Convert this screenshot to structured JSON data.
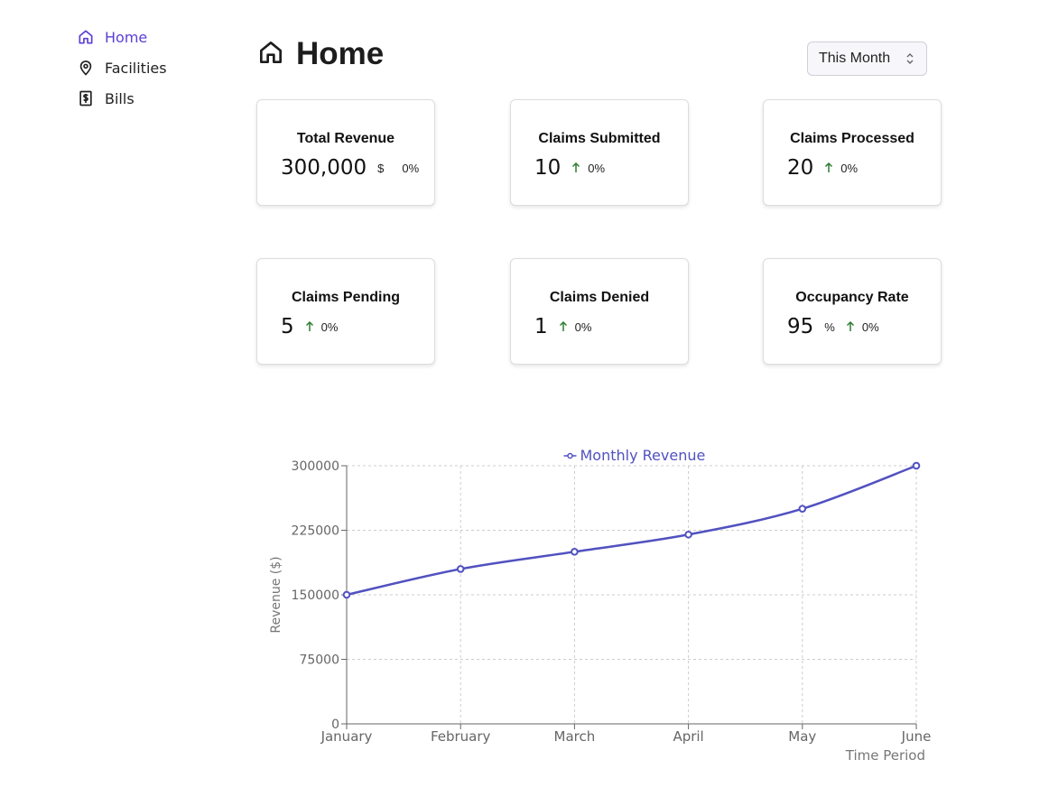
{
  "sidebar": {
    "items": [
      {
        "label": "Home",
        "icon": "home-icon",
        "active": true
      },
      {
        "label": "Facilities",
        "icon": "map-pin-icon",
        "active": false
      },
      {
        "label": "Bills",
        "icon": "dollar-bill-icon",
        "active": false
      }
    ]
  },
  "header": {
    "title": "Home",
    "icon": "home-icon"
  },
  "period_select": {
    "value": "This Month"
  },
  "cards": [
    {
      "title": "Total Revenue",
      "value": "300,000",
      "unit": "$",
      "change": "0%",
      "arrow": false
    },
    {
      "title": "Claims Submitted",
      "value": "10",
      "unit": "",
      "change": "0%",
      "arrow": true
    },
    {
      "title": "Claims Processed",
      "value": "20",
      "unit": "",
      "change": "0%",
      "arrow": true
    },
    {
      "title": "Claims Pending",
      "value": "5",
      "unit": "",
      "change": "0%",
      "arrow": true
    },
    {
      "title": "Claims Denied",
      "value": "1",
      "unit": "",
      "change": "0%",
      "arrow": true
    },
    {
      "title": "Occupancy Rate",
      "value": "95",
      "unit": "%",
      "change": "0%",
      "arrow": true
    }
  ],
  "colors": {
    "accent": "#5b3fd6",
    "series": "#5151c0",
    "trend_up": "#2e7d32",
    "grid": "#cccccc"
  },
  "chart_data": {
    "type": "line",
    "categories": [
      "January",
      "February",
      "March",
      "April",
      "May",
      "June"
    ],
    "series": [
      {
        "name": "Monthly Revenue",
        "values": [
          150000,
          180000,
          200000,
          220000,
          250000,
          300000
        ]
      }
    ],
    "ylabel": "Revenue ($)",
    "xlabel": "Time Period",
    "ylim": [
      0,
      300000
    ],
    "yticks": [
      "0",
      "75000",
      "150000",
      "225000",
      "300000"
    ],
    "legend": "top-center",
    "grid": true
  }
}
